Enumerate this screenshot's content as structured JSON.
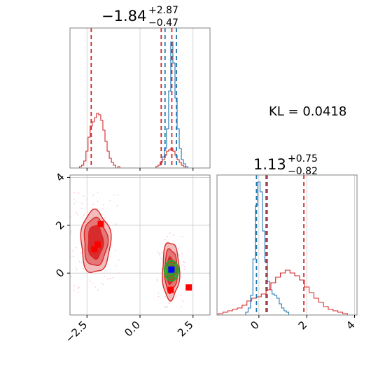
{
  "chart_data": [
    {
      "type": "histogram",
      "panel": "marginal-param-1",
      "title": {
        "base": "−1.84",
        "upper": "+2.87",
        "lower": "−0.47"
      },
      "xlim": [
        -3.3,
        3.3
      ],
      "series": [
        {
          "color": "#1f77b4",
          "bins": [
            [
              0.8,
              0.01
            ],
            [
              0.9,
              0.02
            ],
            [
              1.0,
              0.04
            ],
            [
              1.1,
              0.08
            ],
            [
              1.2,
              0.14
            ],
            [
              1.3,
              0.28
            ],
            [
              1.4,
              0.55
            ],
            [
              1.5,
              0.9
            ],
            [
              1.6,
              0.75
            ],
            [
              1.7,
              0.5
            ],
            [
              1.8,
              0.28
            ],
            [
              1.9,
              0.14
            ],
            [
              2.0,
              0.06
            ],
            [
              2.1,
              0.03
            ],
            [
              2.2,
              0.01
            ]
          ]
        },
        {
          "color": "#d62728",
          "bins": [
            [
              -2.8,
              0.01
            ],
            [
              -2.7,
              0.02
            ],
            [
              -2.6,
              0.05
            ],
            [
              -2.5,
              0.12
            ],
            [
              -2.4,
              0.22
            ],
            [
              -2.3,
              0.3
            ],
            [
              -2.2,
              0.33
            ],
            [
              -2.1,
              0.36
            ],
            [
              -2.0,
              0.39
            ],
            [
              -1.9,
              0.38
            ],
            [
              -1.8,
              0.34
            ],
            [
              -1.7,
              0.27
            ],
            [
              -1.6,
              0.19
            ],
            [
              -1.5,
              0.12
            ],
            [
              -1.4,
              0.07
            ],
            [
              -1.3,
              0.04
            ],
            [
              -1.2,
              0.02
            ],
            [
              -1.0,
              0.01
            ],
            [
              0.8,
              0.01
            ],
            [
              0.9,
              0.02
            ],
            [
              1.0,
              0.04
            ],
            [
              1.1,
              0.06
            ],
            [
              1.2,
              0.09
            ],
            [
              1.3,
              0.12
            ],
            [
              1.4,
              0.13
            ],
            [
              1.5,
              0.14
            ],
            [
              1.6,
              0.12
            ],
            [
              1.7,
              0.09
            ],
            [
              1.8,
              0.06
            ],
            [
              1.9,
              0.04
            ],
            [
              2.0,
              0.02
            ],
            [
              2.1,
              0.01
            ]
          ]
        }
      ],
      "vlines": [
        {
          "x": -2.3,
          "color": "#d62728"
        },
        {
          "x": 1.0,
          "color": "#d62728"
        },
        {
          "x": 1.18,
          "color": "#1f77b4"
        },
        {
          "x": 1.5,
          "color": "#d62728"
        },
        {
          "x": 1.72,
          "color": "#1f77b4"
        }
      ],
      "grid": true
    },
    {
      "type": "scatter",
      "panel": "joint-param-1-vs-param-2",
      "xlim": [
        -3.3,
        3.3
      ],
      "ylim": [
        -1.75,
        4.1
      ],
      "x_ticks": [
        -2.5,
        0.0,
        2.5
      ],
      "x_tick_labels": [
        "−2.5",
        "0.0",
        "2.5"
      ],
      "y_ticks": [
        0,
        2,
        4
      ],
      "y_tick_labels": [
        "0",
        "2",
        "4"
      ],
      "contours_red": [
        {
          "level": "outer",
          "color": "#f2b8b8",
          "center": [
            -2.1,
            1.3
          ],
          "rx": 0.7,
          "ry": 1.3
        },
        {
          "level": "middle",
          "color": "#e57373",
          "center": [
            -2.1,
            1.3
          ],
          "rx": 0.55,
          "ry": 1.0
        },
        {
          "level": "inner",
          "color": "#d62728",
          "center": [
            -2.1,
            1.3
          ],
          "rx": 0.35,
          "ry": 0.7
        },
        {
          "level": "outer",
          "color": "#f2b8b8",
          "center": [
            1.45,
            0.1
          ],
          "rx": 0.4,
          "ry": 1.2
        },
        {
          "level": "middle",
          "color": "#e57373",
          "center": [
            1.45,
            0.1
          ],
          "rx": 0.3,
          "ry": 0.9
        },
        {
          "level": "inner",
          "color": "#d62728",
          "center": [
            1.45,
            0.1
          ],
          "rx": 0.2,
          "ry": 0.55
        }
      ],
      "contours_green": {
        "color": "#2ca02c",
        "center": [
          1.48,
          0.1
        ],
        "rings": [
          [
            0.32,
            0.42
          ],
          [
            0.22,
            0.3
          ],
          [
            0.13,
            0.18
          ]
        ]
      },
      "contours_blue": {
        "color": "#1f77b4",
        "center": [
          1.48,
          0.12
        ],
        "rx": 0.1,
        "ry": 0.14
      },
      "markers_red": [
        [
          -1.85,
          2.05
        ],
        [
          -2.0,
          1.2
        ],
        [
          -2.15,
          1.0
        ],
        [
          2.3,
          -0.6
        ],
        [
          1.45,
          -0.7
        ]
      ],
      "markers_blue": [
        [
          1.48,
          0.15
        ]
      ],
      "grid": true
    },
    {
      "type": "histogram",
      "panel": "marginal-param-2",
      "title": {
        "base": "1.13",
        "upper": "+0.75",
        "lower": "−0.82"
      },
      "xlim": [
        -1.75,
        4.1
      ],
      "x_ticks": [
        0,
        2,
        4
      ],
      "x_tick_labels": [
        "0",
        "2",
        "4"
      ],
      "series": [
        {
          "color": "#1f77b4",
          "bins": [
            [
              -0.5,
              0.02
            ],
            [
              -0.4,
              0.05
            ],
            [
              -0.3,
              0.14
            ],
            [
              -0.2,
              0.4
            ],
            [
              -0.1,
              0.78
            ],
            [
              0.0,
              0.95
            ],
            [
              0.1,
              0.88
            ],
            [
              0.2,
              0.6
            ],
            [
              0.3,
              0.38
            ],
            [
              0.4,
              0.24
            ],
            [
              0.5,
              0.18
            ],
            [
              0.6,
              0.15
            ],
            [
              0.7,
              0.14
            ],
            [
              0.8,
              0.12
            ],
            [
              0.9,
              0.08
            ],
            [
              1.0,
              0.05
            ],
            [
              1.1,
              0.03
            ],
            [
              1.2,
              0.02
            ]
          ]
        },
        {
          "color": "#d62728",
          "bins": [
            [
              -1.6,
              0.01
            ],
            [
              -1.4,
              0.02
            ],
            [
              -1.2,
              0.03
            ],
            [
              -1.0,
              0.04
            ],
            [
              -0.8,
              0.05
            ],
            [
              -0.6,
              0.07
            ],
            [
              -0.4,
              0.1
            ],
            [
              -0.2,
              0.12
            ],
            [
              0.0,
              0.13
            ],
            [
              0.2,
              0.15
            ],
            [
              0.4,
              0.18
            ],
            [
              0.6,
              0.23
            ],
            [
              0.8,
              0.27
            ],
            [
              1.0,
              0.3
            ],
            [
              1.2,
              0.32
            ],
            [
              1.4,
              0.3
            ],
            [
              1.6,
              0.28
            ],
            [
              1.8,
              0.25
            ],
            [
              2.0,
              0.2
            ],
            [
              2.2,
              0.16
            ],
            [
              2.4,
              0.12
            ],
            [
              2.6,
              0.09
            ],
            [
              2.8,
              0.06
            ],
            [
              3.0,
              0.04
            ],
            [
              3.2,
              0.03
            ],
            [
              3.4,
              0.02
            ],
            [
              3.6,
              0.01
            ]
          ]
        }
      ],
      "vlines": [
        {
          "x": -0.1,
          "color": "#1f77b4"
        },
        {
          "x": 0.3,
          "color": "#d62728"
        },
        {
          "x": 0.35,
          "color": "#1f77b4"
        },
        {
          "x": 1.88,
          "color": "#d62728"
        }
      ],
      "grid": true
    }
  ],
  "annotation": {
    "kl_text": "KL = 0.0418"
  }
}
